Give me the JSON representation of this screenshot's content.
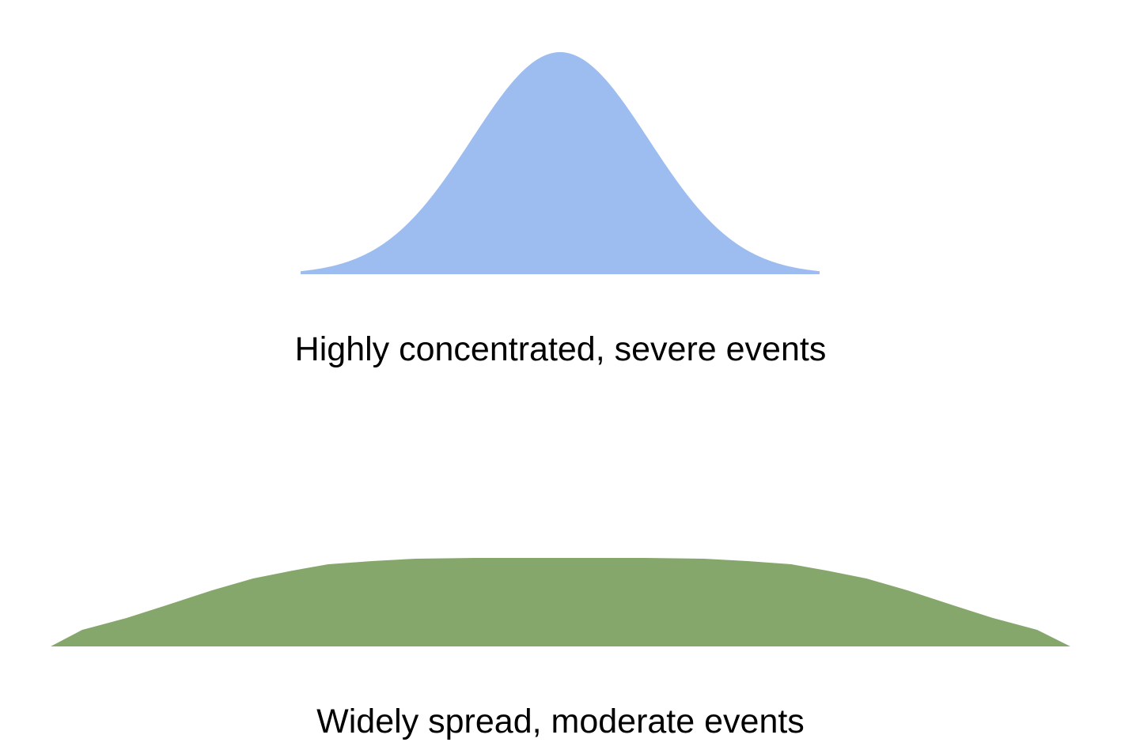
{
  "distributions": [
    {
      "id": "concentrated",
      "label": "Highly concentrated, severe events",
      "color": "#9dbcef",
      "shape": "narrow tall bell curve"
    },
    {
      "id": "spread",
      "label": "Widely spread, moderate events",
      "color": "#86a76b",
      "shape": "wide flat mound"
    }
  ]
}
